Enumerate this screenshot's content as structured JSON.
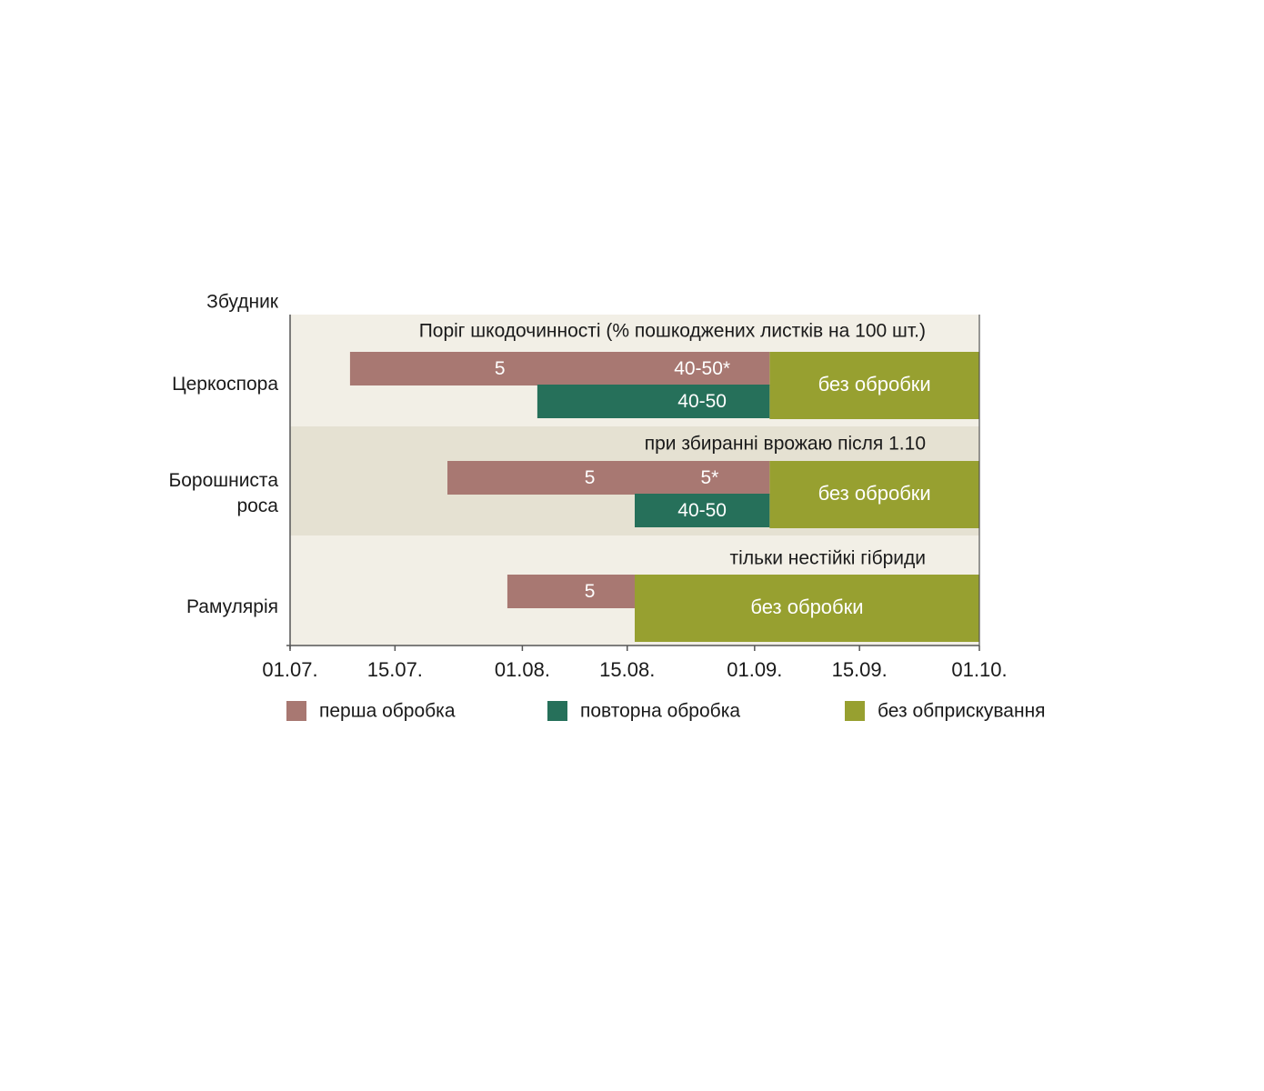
{
  "chart_data": {
    "type": "gantt",
    "y_axis_title": "Збудник",
    "x_ticks": [
      "01.07.",
      "15.07.",
      "01.08.",
      "15.08.",
      "01.09.",
      "15.09.",
      "01.10."
    ],
    "x_tick_dates": [
      "2000-07-01",
      "2000-07-15",
      "2000-08-01",
      "2000-08-15",
      "2000-09-01",
      "2000-09-15",
      "2000-10-01"
    ],
    "x_range": [
      "2000-07-01",
      "2000-10-01"
    ],
    "rows": [
      {
        "name_lines": [
          "Церкоспора"
        ],
        "note": "Поріг шкодочинності (% пошкоджених листків на 100 шт.)",
        "bars": [
          {
            "series": "first",
            "start": "2000-07-09",
            "end": "2000-09-03",
            "labels": [
              {
                "text": "5",
                "at": "2000-07-29"
              },
              {
                "text": "40-50*",
                "at": "2000-08-25"
              }
            ]
          },
          {
            "series": "repeat",
            "start": "2000-08-03",
            "end": "2000-09-03",
            "labels": [
              {
                "text": "40-50",
                "at": "2000-08-25"
              }
            ]
          }
        ],
        "no_treatment": {
          "start": "2000-09-03",
          "end": "2000-10-01",
          "label": "без обробки"
        }
      },
      {
        "name_lines": [
          "Борошниста",
          "роса"
        ],
        "note": "при збиранні врожаю після 1.10",
        "bars": [
          {
            "series": "first",
            "start": "2000-07-22",
            "end": "2000-09-03",
            "labels": [
              {
                "text": "5",
                "at": "2000-08-10"
              },
              {
                "text": "5*",
                "at": "2000-08-26"
              }
            ]
          },
          {
            "series": "repeat",
            "start": "2000-08-16",
            "end": "2000-09-03",
            "labels": [
              {
                "text": "40-50",
                "at": "2000-08-25"
              }
            ]
          }
        ],
        "no_treatment": {
          "start": "2000-09-03",
          "end": "2000-10-01",
          "label": "без обробки"
        }
      },
      {
        "name_lines": [
          "Рамулярія"
        ],
        "note": "тільки нестійкі гібриди",
        "bars": [
          {
            "series": "first",
            "start": "2000-07-30",
            "end": "2000-08-16",
            "labels": [
              {
                "text": "5",
                "at": "2000-08-10"
              }
            ]
          }
        ],
        "no_treatment": {
          "start": "2000-08-16",
          "end": "2000-10-01",
          "label": "без обробки"
        }
      }
    ],
    "legend": [
      {
        "key": "first",
        "label": "перша обробка",
        "color": "#a87872"
      },
      {
        "key": "repeat",
        "label": "повторна обробка",
        "color": "#26705a"
      },
      {
        "key": "none",
        "label": "без обприскування",
        "color": "#97a030"
      }
    ],
    "colors": {
      "panel": "#f2efe6",
      "band": "#e5e1d2",
      "axis": "#555555"
    }
  }
}
